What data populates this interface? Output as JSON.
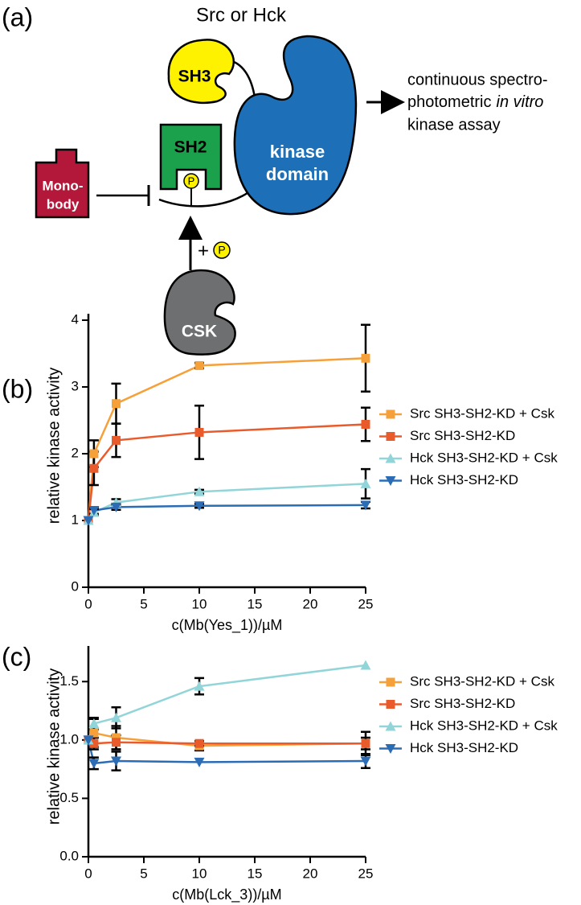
{
  "diagram": {
    "panel_label": "(a)",
    "title": "Src or Hck",
    "sh3": "SH3",
    "sh2": "SH2",
    "kinase_domain": [
      "kinase",
      "domain"
    ],
    "monobody": [
      "Mono-",
      "body"
    ],
    "phospho": "P",
    "plus": "+",
    "csk": "CSK",
    "assay": [
      "continuous spectro-",
      "photometric",
      "in vitro",
      "kinase assay"
    ]
  },
  "chart_data": [
    {
      "type": "line",
      "panel_label": "(b)",
      "x_label": "c(Mb(Yes_1))/µM",
      "y_label": "relative kinase activity",
      "x": [
        0,
        0.5,
        2.5,
        10,
        25
      ],
      "xlim": [
        0,
        25
      ],
      "xticks": [
        0,
        5,
        10,
        15,
        20,
        25
      ],
      "ylim": [
        0,
        4
      ],
      "yticks": [
        0,
        1,
        2,
        3,
        4
      ],
      "legend": "right",
      "series": [
        {
          "name": "Src SH3-SH2-KD + Csk",
          "color": "#f6a03a",
          "marker": "square",
          "values": [
            1,
            2.0,
            2.75,
            3.32,
            3.43
          ],
          "errors": [
            null,
            0.2,
            0.3,
            0.04,
            0.5
          ]
        },
        {
          "name": "Src SH3-SH2-KD",
          "color": "#ea5b2c",
          "marker": "square",
          "values": [
            1,
            1.78,
            2.2,
            2.32,
            2.44
          ],
          "errors": [
            null,
            0.25,
            0.25,
            0.4,
            0.25
          ]
        },
        {
          "name": "Hck SH3-SH2-KD + Csk",
          "color": "#92d5d9",
          "marker": "triangle-up",
          "values": [
            1,
            1.12,
            1.27,
            1.43,
            1.55
          ],
          "errors": [
            null,
            0.05,
            0.05,
            0.03,
            0.22
          ]
        },
        {
          "name": "Hck SH3-SH2-KD",
          "color": "#2b6cb5",
          "marker": "triangle-down",
          "values": [
            1,
            1.15,
            1.2,
            1.22,
            1.23
          ],
          "errors": [
            null,
            0.05,
            0.04,
            0.03,
            0.05
          ]
        }
      ]
    },
    {
      "type": "line",
      "panel_label": "(c)",
      "x_label": "c(Mb(Lck_3))/µM",
      "y_label": "relative kinase activity",
      "x": [
        0,
        0.5,
        2.5,
        10,
        25
      ],
      "xlim": [
        0,
        25
      ],
      "xticks": [
        0,
        5,
        10,
        15,
        20,
        25
      ],
      "ylim": [
        0,
        1.75
      ],
      "yticks": [
        {
          "value": 0,
          "label": "0.0"
        },
        0.5,
        {
          "value": 1,
          "label": "1.0"
        },
        1.5
      ],
      "legend": "right",
      "series": [
        {
          "name": "Src SH3-SH2-KD + Csk",
          "color": "#f6a03a",
          "marker": "square",
          "values": [
            1,
            1.06,
            1.02,
            0.95,
            0.97
          ],
          "errors": [
            null,
            0.12,
            0.1,
            0.04,
            0.05
          ]
        },
        {
          "name": "Src SH3-SH2-KD",
          "color": "#ea5b2c",
          "marker": "square",
          "values": [
            1,
            0.97,
            0.98,
            0.97,
            0.97
          ],
          "errors": [
            null,
            0.05,
            0.06,
            0.02,
            0.1
          ]
        },
        {
          "name": "Hck SH3-SH2-KD + Csk",
          "color": "#92d5d9",
          "marker": "triangle-up",
          "values": [
            1,
            1.14,
            1.19,
            1.46,
            1.64
          ],
          "errors": [
            null,
            0.05,
            0.09,
            0.07,
            null
          ]
        },
        {
          "name": "Hck SH3-SH2-KD",
          "color": "#2b6cb5",
          "marker": "triangle-down",
          "values": [
            1,
            0.8,
            0.82,
            0.81,
            0.82
          ],
          "errors": [
            null,
            0.05,
            0.08,
            null,
            0.06
          ]
        }
      ]
    }
  ]
}
